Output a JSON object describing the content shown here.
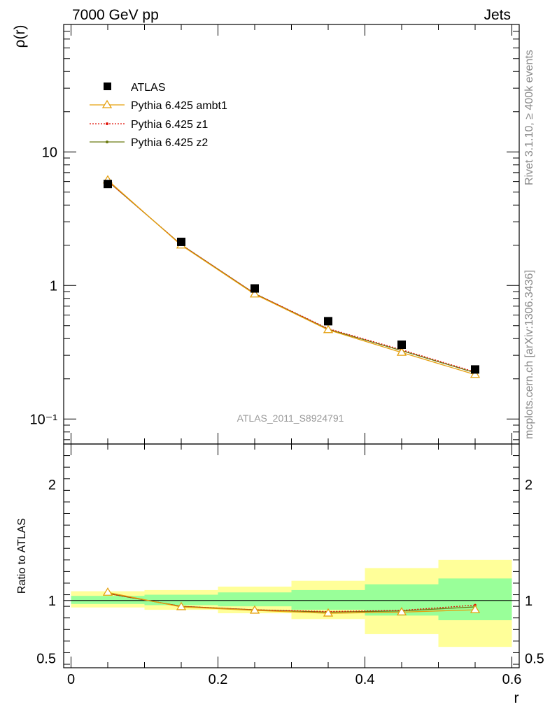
{
  "header": {
    "left": "7000 GeV pp",
    "right": "Jets"
  },
  "side_text": {
    "rivet": "Rivet 3.1.10, ≥ 400k events",
    "mcplots": "mcplots.cern.ch [arXiv:1306.3436]"
  },
  "analysis_label": "ATLAS_2011_S8924791",
  "colors": {
    "atlas": "#000000",
    "ambt1": "#e5a00f",
    "z1": "#e0140a",
    "z2": "#6b7a10",
    "band_inner": "#99ff99",
    "band_outer": "#ffff99"
  },
  "chart_data": [
    {
      "type": "line",
      "panel": "main",
      "ylabel": "ρ(r)",
      "yscale": "log",
      "ylim": [
        0.065,
        90
      ],
      "xlim": [
        -0.01,
        0.61
      ],
      "ytick_labels": [
        "10⁻¹",
        "1",
        "10"
      ],
      "x": [
        0.05,
        0.15,
        0.25,
        0.35,
        0.45,
        0.55
      ],
      "series": [
        {
          "name": "ATLAS",
          "marker": "filled-square",
          "values": [
            5.75,
            2.12,
            0.95,
            0.54,
            0.36,
            0.235
          ]
        },
        {
          "name": "Pythia 6.425 ambt1",
          "marker": "open-triangle",
          "line": "solid",
          "values": [
            6.15,
            2.0,
            0.86,
            0.465,
            0.315,
            0.215
          ]
        },
        {
          "name": "Pythia 6.425 z1",
          "marker": "dot",
          "line": "dotted",
          "values": [
            6.05,
            2.02,
            0.87,
            0.475,
            0.33,
            0.225
          ]
        },
        {
          "name": "Pythia 6.425 z2",
          "marker": "dot",
          "line": "solid",
          "values": [
            6.05,
            2.02,
            0.87,
            0.47,
            0.325,
            0.222
          ]
        }
      ]
    },
    {
      "type": "line",
      "panel": "ratio",
      "xlabel": "r",
      "ylabel": "Ratio to ATLAS",
      "ylim": [
        0.42,
        2.35
      ],
      "yticks": [
        0.5,
        1,
        2
      ],
      "ytick_labels": [
        "0.5",
        "1",
        "2"
      ],
      "xticks": [
        0,
        0.2,
        0.4,
        0.6
      ],
      "xtick_labels": [
        "0",
        "0.2",
        "0.4",
        "0.6"
      ],
      "bands": {
        "edges": [
          0.0,
          0.1,
          0.2,
          0.3,
          0.4,
          0.5,
          0.6
        ],
        "inner": [
          [
            0.97,
            1.04
          ],
          [
            0.96,
            1.05
          ],
          [
            0.95,
            1.07
          ],
          [
            0.92,
            1.09
          ],
          [
            0.87,
            1.14
          ],
          [
            0.83,
            1.19
          ]
        ],
        "outer": [
          [
            0.94,
            1.08
          ],
          [
            0.92,
            1.09
          ],
          [
            0.89,
            1.12
          ],
          [
            0.84,
            1.17
          ],
          [
            0.71,
            1.28
          ],
          [
            0.6,
            1.35
          ]
        ]
      },
      "x": [
        0.05,
        0.15,
        0.25,
        0.35,
        0.45,
        0.55
      ],
      "series": [
        {
          "name": "Pythia 6.425 ambt1",
          "values": [
            1.07,
            0.945,
            0.915,
            0.89,
            0.9,
            0.92
          ]
        },
        {
          "name": "Pythia 6.425 z1",
          "values": [
            1.06,
            0.95,
            0.92,
            0.905,
            0.915,
            0.96
          ]
        },
        {
          "name": "Pythia 6.425 z2",
          "values": [
            1.06,
            0.95,
            0.92,
            0.9,
            0.91,
            0.945
          ]
        }
      ]
    }
  ]
}
